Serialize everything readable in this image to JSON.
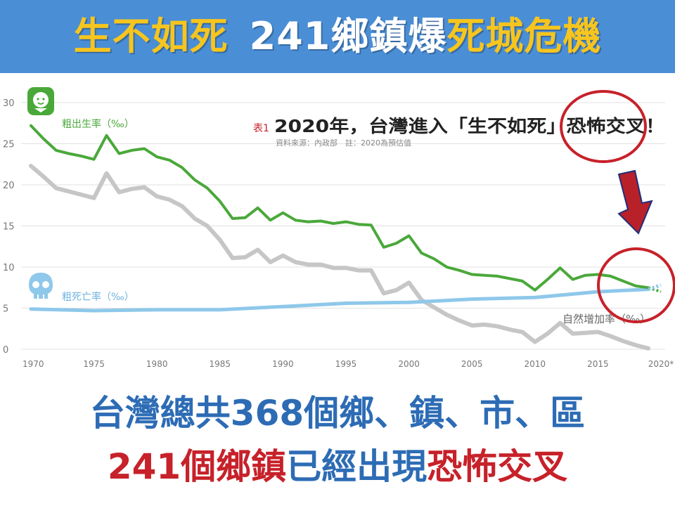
{
  "banner": {
    "background": "#4a8ed6",
    "parts": [
      {
        "text": "生不如死",
        "color": "#f7c51e"
      },
      {
        "text": "241鄉鎮爆",
        "color": "#ffffff"
      },
      {
        "text": "死城危機",
        "color": "#f7c51e"
      }
    ]
  },
  "chart_data": {
    "type": "line",
    "title_prefix": "表1",
    "title": "2020年，台灣進入「生不如死」恐怖交叉！",
    "title_emphasis": "恐怖交叉",
    "source_note": "資料來源：內政部　註：2020為預估值",
    "ylim": [
      0,
      30
    ],
    "yticks": [
      0,
      5,
      10,
      15,
      20,
      25,
      30
    ],
    "xlim": [
      1970,
      2020
    ],
    "xtick_labels": [
      "1970",
      "1975",
      "1980",
      "1985",
      "1990",
      "1995",
      "2000",
      "2005",
      "2010",
      "2015",
      "2020*"
    ],
    "xtick_values": [
      1970,
      1975,
      1980,
      1985,
      1990,
      1995,
      2000,
      2005,
      2010,
      2015,
      2020
    ],
    "grid": true,
    "series": [
      {
        "name": "粗出生率（‰）",
        "color": "#4aa83a",
        "x": [
          1970,
          1971,
          1972,
          1973,
          1974,
          1975,
          1976,
          1977,
          1978,
          1979,
          1980,
          1981,
          1982,
          1983,
          1984,
          1985,
          1986,
          1987,
          1988,
          1989,
          1990,
          1991,
          1992,
          1993,
          1994,
          1995,
          1996,
          1997,
          1998,
          1999,
          2000,
          2001,
          2002,
          2003,
          2004,
          2005,
          2006,
          2007,
          2008,
          2009,
          2010,
          2011,
          2012,
          2013,
          2014,
          2015,
          2016,
          2017,
          2018,
          2019
        ],
        "values": [
          27.2,
          25.6,
          24.2,
          23.8,
          23.5,
          23.1,
          26.0,
          23.8,
          24.2,
          24.4,
          23.4,
          23.0,
          22.1,
          20.6,
          19.6,
          18.0,
          15.9,
          16.0,
          17.2,
          15.7,
          16.6,
          15.7,
          15.5,
          15.6,
          15.3,
          15.5,
          15.2,
          15.1,
          12.4,
          12.9,
          13.8,
          11.7,
          11.0,
          10.0,
          9.6,
          9.1,
          9.0,
          8.9,
          8.6,
          8.3,
          7.2,
          8.5,
          9.9,
          8.5,
          9.0,
          9.1,
          8.9,
          8.3,
          7.7,
          7.5
        ]
      },
      {
        "name": "粗死亡率（‰）",
        "color": "#8ec8ea",
        "x": [
          1970,
          1975,
          1980,
          1985,
          1990,
          1995,
          2000,
          2005,
          2010,
          2015,
          2019
        ],
        "values": [
          4.9,
          4.7,
          4.8,
          4.8,
          5.2,
          5.6,
          5.7,
          6.1,
          6.3,
          7.0,
          7.3
        ]
      },
      {
        "name": "自然增加率（‰）",
        "color": "#c6c6c6",
        "x": [
          1970,
          1971,
          1972,
          1973,
          1974,
          1975,
          1976,
          1977,
          1978,
          1979,
          1980,
          1981,
          1982,
          1983,
          1984,
          1985,
          1986,
          1987,
          1988,
          1989,
          1990,
          1991,
          1992,
          1993,
          1994,
          1995,
          1996,
          1997,
          1998,
          1999,
          2000,
          2001,
          2002,
          2003,
          2004,
          2005,
          2006,
          2007,
          2008,
          2009,
          2010,
          2011,
          2012,
          2013,
          2014,
          2015,
          2016,
          2017,
          2018,
          2019
        ],
        "values": [
          22.3,
          21.0,
          19.6,
          19.2,
          18.8,
          18.4,
          21.4,
          19.1,
          19.5,
          19.7,
          18.6,
          18.2,
          17.4,
          15.9,
          15.0,
          13.3,
          11.1,
          11.2,
          12.1,
          10.6,
          11.4,
          10.6,
          10.3,
          10.3,
          9.9,
          9.9,
          9.6,
          9.6,
          6.8,
          7.2,
          8.1,
          6.0,
          5.1,
          4.2,
          3.5,
          2.9,
          3.0,
          2.8,
          2.4,
          2.1,
          0.9,
          1.9,
          3.2,
          1.9,
          2.0,
          2.1,
          1.6,
          1.0,
          0.5,
          0.1
        ]
      }
    ],
    "projection": {
      "years": [
        2019,
        2020
      ],
      "birth_values": [
        7.5,
        7.0
      ],
      "death_values": [
        7.3,
        7.8
      ]
    },
    "icons": {
      "birth": "baby-icon",
      "death": "skull-icon"
    }
  },
  "annotations": {
    "circle_color": "#c7212a",
    "arrow_color": "#b8202a",
    "arrow_outline": "#1e2f7a"
  },
  "bottom": {
    "line1": "台灣總共368個鄉、鎮、市、區",
    "line1_color": "#2d6cb5",
    "line2_parts": [
      {
        "text": "241個鄉鎮",
        "color": "#c7212a"
      },
      {
        "text": "已經出現",
        "color": "#2d6cb5"
      },
      {
        "text": "恐怖交叉",
        "color": "#c7212a"
      }
    ]
  }
}
